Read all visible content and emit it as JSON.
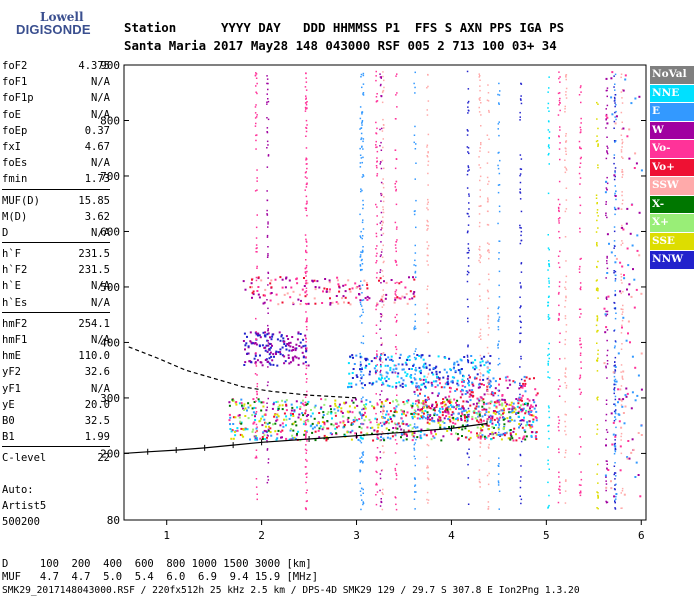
{
  "logo": {
    "line1": "Lowell",
    "line2": "DIGISONDE"
  },
  "header": {
    "row1": "Station      YYYY DAY   DDD HHMMSS P1  FFS S AXN PPS IGA PS",
    "row2": "Santa Maria 2017 May28 148 043000 RSF 005 2 713 100 03+ 34"
  },
  "params": [
    {
      "k": "foF2",
      "v": "4.375"
    },
    {
      "k": "foF1",
      "v": "N/A"
    },
    {
      "k": "foF1p",
      "v": "N/A"
    },
    {
      "k": "foE",
      "v": "N/A"
    },
    {
      "k": "foEp",
      "v": "0.37"
    },
    {
      "k": "fxI",
      "v": "4.67"
    },
    {
      "k": "foEs",
      "v": "N/A"
    },
    {
      "k": "fmin",
      "v": "1.73"
    },
    {
      "k": "MUF(D)",
      "v": "15.85"
    },
    {
      "k": "M(D)",
      "v": "3.62"
    },
    {
      "k": "D",
      "v": "N/A"
    },
    {
      "k": "h`F",
      "v": "231.5"
    },
    {
      "k": "h`F2",
      "v": "231.5"
    },
    {
      "k": "h`E",
      "v": "N/A"
    },
    {
      "k": "h`Es",
      "v": "N/A"
    },
    {
      "k": "hmF2",
      "v": "254.1"
    },
    {
      "k": "hmF1",
      "v": "N/A"
    },
    {
      "k": "hmE",
      "v": "110.0"
    },
    {
      "k": "yF2",
      "v": "32.6"
    },
    {
      "k": "yF1",
      "v": "N/A"
    },
    {
      "k": "yE",
      "v": "20.0"
    },
    {
      "k": "B0",
      "v": "32.5"
    },
    {
      "k": "B1",
      "v": "1.99"
    },
    {
      "k": "C-level",
      "v": "22"
    }
  ],
  "notes": {
    "auto": "Auto:",
    "artist": "Artist5",
    "code": "500200"
  },
  "footer": {
    "d_row": "D     100  200  400  600  800 1000 1500 3000 [km]",
    "muf_row": "MUF   4.7  4.7  5.0  5.4  6.0  6.9  9.4 15.9 [MHz]",
    "file_row": "SMK29_2017148043000.RSF / 220fx512h 25 kHz 2.5 km / DPS-4D SMK29 129 / 29.7 S 307.8 E Ion2Png 1.3.20"
  },
  "legend": [
    {
      "label": "NoVal",
      "color": "#7f7f7f",
      "text": "#ffffff"
    },
    {
      "label": "NNE",
      "color": "#00e0ff",
      "text": "#ffffff"
    },
    {
      "label": "E",
      "color": "#3399ff",
      "text": "#ffffff"
    },
    {
      "label": "W",
      "color": "#a000a0",
      "text": "#ffffff"
    },
    {
      "label": "Vo-",
      "color": "#ff3399",
      "text": "#ffffff"
    },
    {
      "label": "Vo+",
      "color": "#ee1133",
      "text": "#ffffff"
    },
    {
      "label": "SSW",
      "color": "#ffaaaa",
      "text": "#ffffff"
    },
    {
      "label": "X-",
      "color": "#007700",
      "text": "#ffffff"
    },
    {
      "label": "X+",
      "color": "#99ee77",
      "text": "#ffffff"
    },
    {
      "label": "SSE",
      "color": "#dddd00",
      "text": "#ffffff"
    },
    {
      "label": "NNW",
      "color": "#2222cc",
      "text": "#ffffff"
    }
  ],
  "chart_data": {
    "type": "scatter",
    "x_ticks": [
      "1",
      "2",
      "3",
      "4",
      "5",
      "6"
    ],
    "y_ticks": [
      "80",
      "200",
      "300",
      "400",
      "500",
      "600",
      "700",
      "800",
      "900"
    ],
    "xlim": [
      0.55,
      6.05
    ],
    "ylim": [
      80,
      900
    ],
    "profile_solid": {
      "x": [
        0.55,
        0.8,
        1.1,
        1.4,
        1.7,
        2.0,
        2.5,
        3.0,
        3.5,
        4.0,
        4.375
      ],
      "y": [
        200,
        203,
        206,
        210,
        215,
        220,
        226,
        232,
        238,
        245,
        254
      ]
    },
    "profile_dashed": {
      "x": [
        0.6,
        0.9,
        1.2,
        1.5,
        1.8,
        2.1,
        2.5,
        3.0
      ],
      "y": [
        392,
        372,
        350,
        335,
        320,
        312,
        305,
        300
      ]
    }
  }
}
